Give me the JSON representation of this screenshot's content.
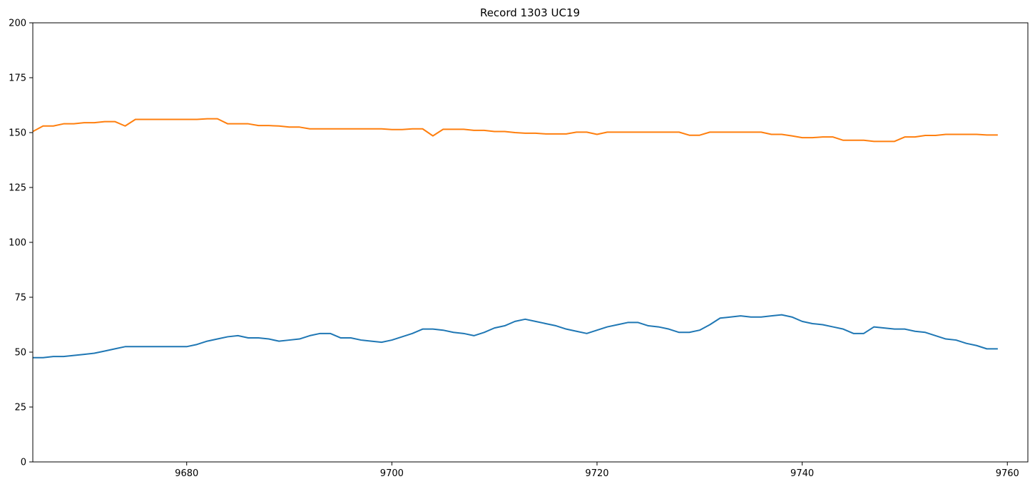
{
  "chart_data": {
    "type": "line",
    "title": "Record 1303 UC19",
    "xlabel": "",
    "ylabel": "",
    "xlim": [
      9665,
      9762
    ],
    "ylim": [
      0,
      200
    ],
    "x_ticks": [
      9680,
      9700,
      9720,
      9740,
      9760
    ],
    "y_ticks": [
      0,
      25,
      50,
      75,
      100,
      125,
      150,
      175,
      200
    ],
    "grid": false,
    "legend": "none",
    "colors": [
      "#1f77b4",
      "#ff7f0e"
    ],
    "x": [
      9665,
      9666,
      9667,
      9668,
      9669,
      9670,
      9671,
      9672,
      9673,
      9674,
      9675,
      9676,
      9677,
      9678,
      9679,
      9680,
      9681,
      9682,
      9683,
      9684,
      9685,
      9686,
      9687,
      9688,
      9689,
      9690,
      9691,
      9692,
      9693,
      9694,
      9695,
      9696,
      9697,
      9698,
      9699,
      9700,
      9701,
      9702,
      9703,
      9704,
      9705,
      9706,
      9707,
      9708,
      9709,
      9710,
      9711,
      9712,
      9713,
      9714,
      9715,
      9716,
      9717,
      9718,
      9719,
      9720,
      9721,
      9722,
      9723,
      9724,
      9725,
      9726,
      9727,
      9728,
      9729,
      9730,
      9731,
      9732,
      9733,
      9734,
      9735,
      9736,
      9737,
      9738,
      9739,
      9740,
      9741,
      9742,
      9743,
      9744,
      9745,
      9746,
      9747,
      9748,
      9749,
      9750,
      9751,
      9752,
      9753,
      9754,
      9755,
      9756,
      9757,
      9758,
      9759
    ],
    "series": [
      {
        "values": [
          47.5,
          47.5,
          48,
          48,
          48.5,
          49,
          49.5,
          50.5,
          51.5,
          52.5,
          52.5,
          52.5,
          52.5,
          52.5,
          52.5,
          52.5,
          53.5,
          55,
          56,
          57,
          57.5,
          56.5,
          56.5,
          56,
          55,
          55.5,
          56,
          57.5,
          58.5,
          58.5,
          56.5,
          56.5,
          55.5,
          55,
          54.5,
          55.5,
          57,
          58.5,
          60.5,
          60.5,
          60,
          59,
          58.5,
          57.5,
          59,
          61,
          62,
          64,
          65,
          64,
          63,
          62,
          60.5,
          59.5,
          58.5,
          60,
          61.5,
          62.5,
          63.5,
          63.5,
          62,
          61.5,
          60.5,
          59,
          59,
          60,
          62.5,
          65.5,
          66,
          66.5,
          66,
          66,
          66.5,
          67,
          66,
          64,
          63,
          62.5,
          61.5,
          60.5,
          58.5,
          58.5,
          61.5,
          61,
          60.5,
          60.5,
          59.5,
          59,
          57.5,
          56,
          55.5,
          54,
          53,
          51.5,
          51.5
        ]
      },
      {
        "values": [
          150.5,
          153,
          153,
          154,
          154,
          154.5,
          154.5,
          155,
          155,
          153,
          156,
          156,
          156,
          156,
          156,
          156,
          156,
          156.3,
          156.3,
          154,
          154,
          154,
          153.2,
          153.2,
          153,
          152.5,
          152.5,
          151.7,
          151.7,
          151.7,
          151.7,
          151.7,
          151.7,
          151.7,
          151.7,
          151.4,
          151.4,
          151.7,
          151.7,
          148.5,
          151.5,
          151.5,
          151.5,
          151,
          151,
          150.5,
          150.5,
          150,
          149.7,
          149.7,
          149.4,
          149.4,
          149.4,
          150.2,
          150.2,
          149.2,
          150.2,
          150.2,
          150.2,
          150.2,
          150.2,
          150.2,
          150.2,
          150.2,
          148.8,
          148.8,
          150.2,
          150.2,
          150.2,
          150.2,
          150.2,
          150.2,
          149.2,
          149.2,
          148.5,
          147.7,
          147.7,
          148,
          148,
          146.5,
          146.5,
          146.5,
          146,
          146,
          146,
          148,
          148,
          148.7,
          148.7,
          149.2,
          149.2,
          149.2,
          149.2,
          148.9,
          148.9
        ]
      }
    ]
  }
}
